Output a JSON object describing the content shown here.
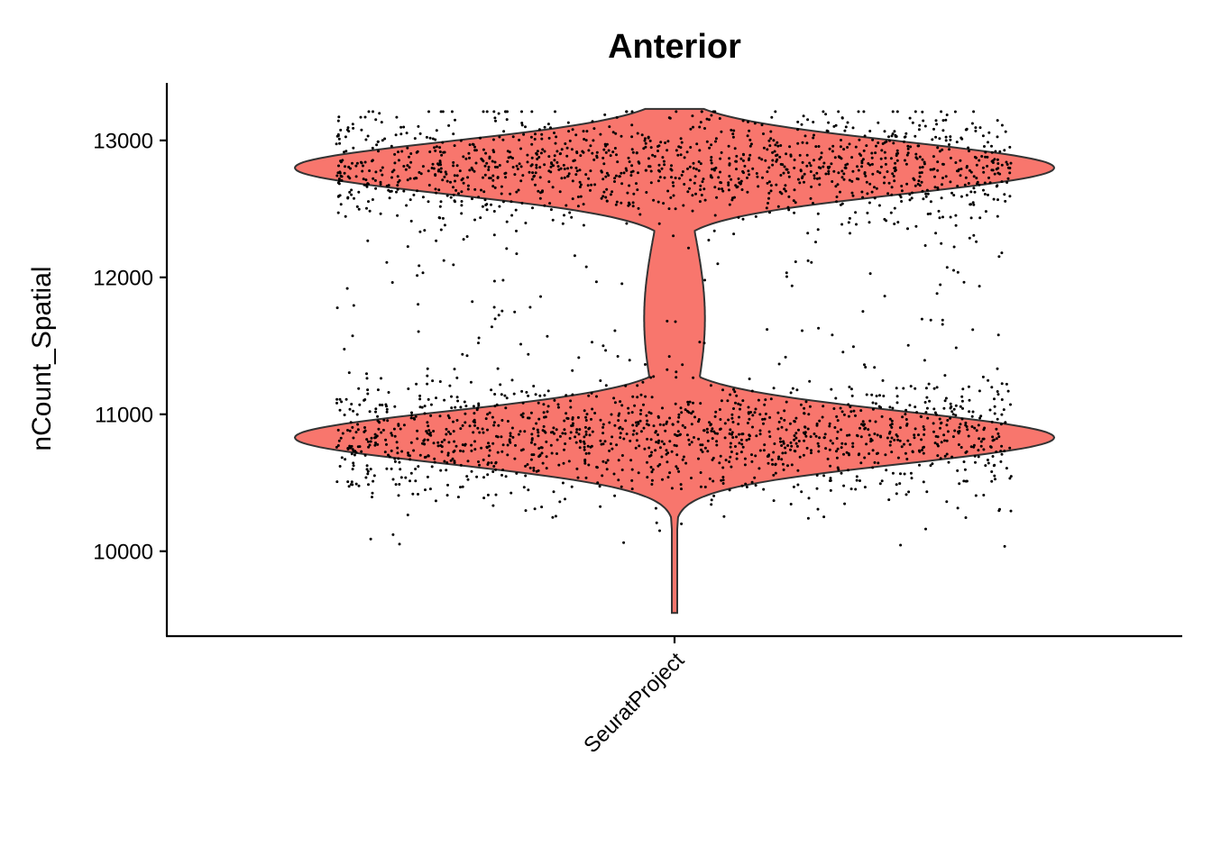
{
  "chart_data": {
    "type": "violin",
    "title": "Anterior",
    "xlabel": "",
    "ylabel": "nCount_Spatial",
    "categories": [
      "SeuratProject"
    ],
    "ylim": [
      9380,
      13420
    ],
    "yticks": [
      10000,
      11000,
      12000,
      13000
    ],
    "grid": false,
    "legend": "none",
    "fill_color": "#F8766D",
    "violin": {
      "min": 9550,
      "max": 13230,
      "modes": [
        {
          "center": 10830,
          "sd": 190,
          "weight": 0.5
        },
        {
          "center": 12800,
          "sd": 190,
          "weight": 0.5
        }
      ],
      "waist": {
        "center": 11700,
        "width_fraction": 0.04
      }
    },
    "n_points_shown": 2700
  }
}
